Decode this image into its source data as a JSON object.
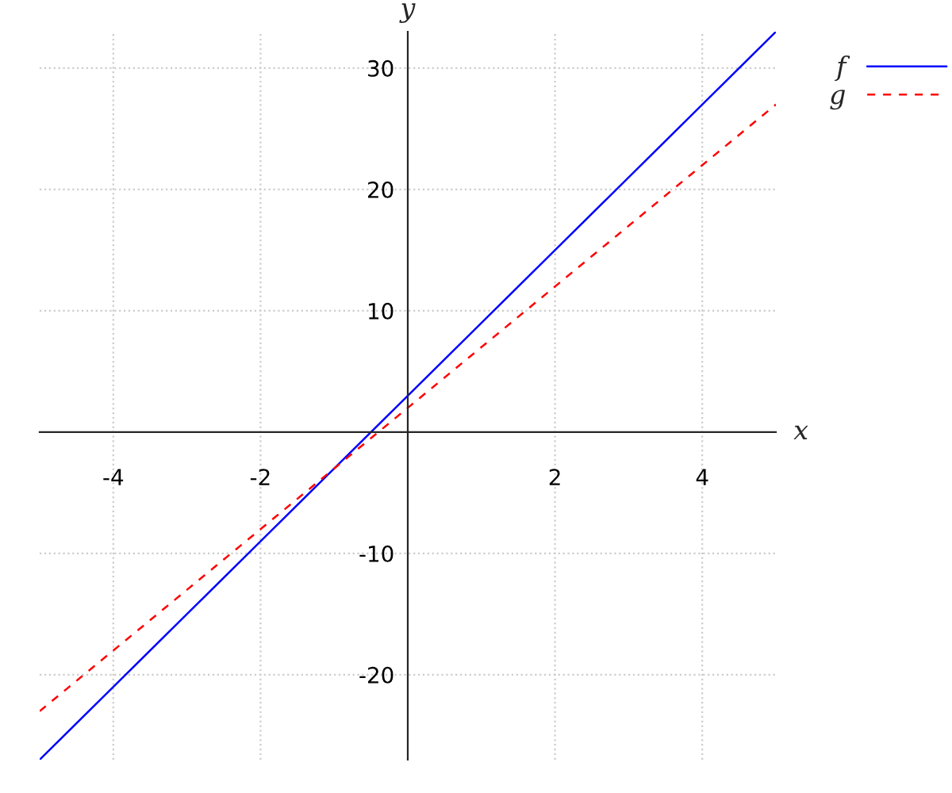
{
  "chart_data": {
    "type": "line",
    "xlabel": "x",
    "ylabel": "y",
    "x": [
      -5,
      5
    ],
    "series": [
      {
        "name": "f",
        "color": "#0000ff",
        "values": [
          -27,
          33
        ],
        "line_style": "solid"
      },
      {
        "name": "g",
        "color": "#ff0000",
        "values": [
          -23,
          27
        ],
        "line_style": "dashed"
      }
    ],
    "xlim": [
      -5,
      5
    ],
    "ylim": [
      -27,
      33
    ],
    "xticks": [
      -4,
      -2,
      2,
      4
    ],
    "yticks": [
      -20,
      -10,
      10,
      20,
      30
    ],
    "grid": true,
    "legend": "top right",
    "marker": "none"
  }
}
